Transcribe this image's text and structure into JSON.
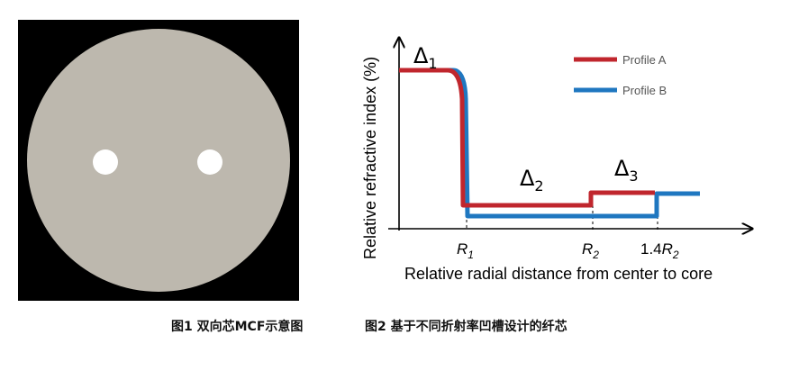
{
  "fig1": {
    "caption": "图1 双向芯MCF示意图",
    "fiber": {
      "cladding_color": "#bdb8ae",
      "background_color": "#000000",
      "core_color": "#ffffff",
      "core_count": 2
    }
  },
  "fig2": {
    "caption": "图2 基于不同折射率凹槽设计的纤芯",
    "y_axis_label": "Relative refractive index (%)",
    "x_axis_label": "Relative radial distance from center to core",
    "ticks": {
      "r1_base": "R",
      "r1_sub": "1",
      "r2_base": "R",
      "r2_sub": "2",
      "r3_prefix": "1.4",
      "r3_base": "R",
      "r3_sub": "2"
    },
    "labels": {
      "delta_symbol": "Δ",
      "delta1_sub": "1",
      "delta2_sub": "2",
      "delta3_sub": "3"
    },
    "legend": [
      {
        "name": "Profile A",
        "color": "#c0262d"
      },
      {
        "name": "Profile B",
        "color": "#1f77c0"
      }
    ]
  }
}
